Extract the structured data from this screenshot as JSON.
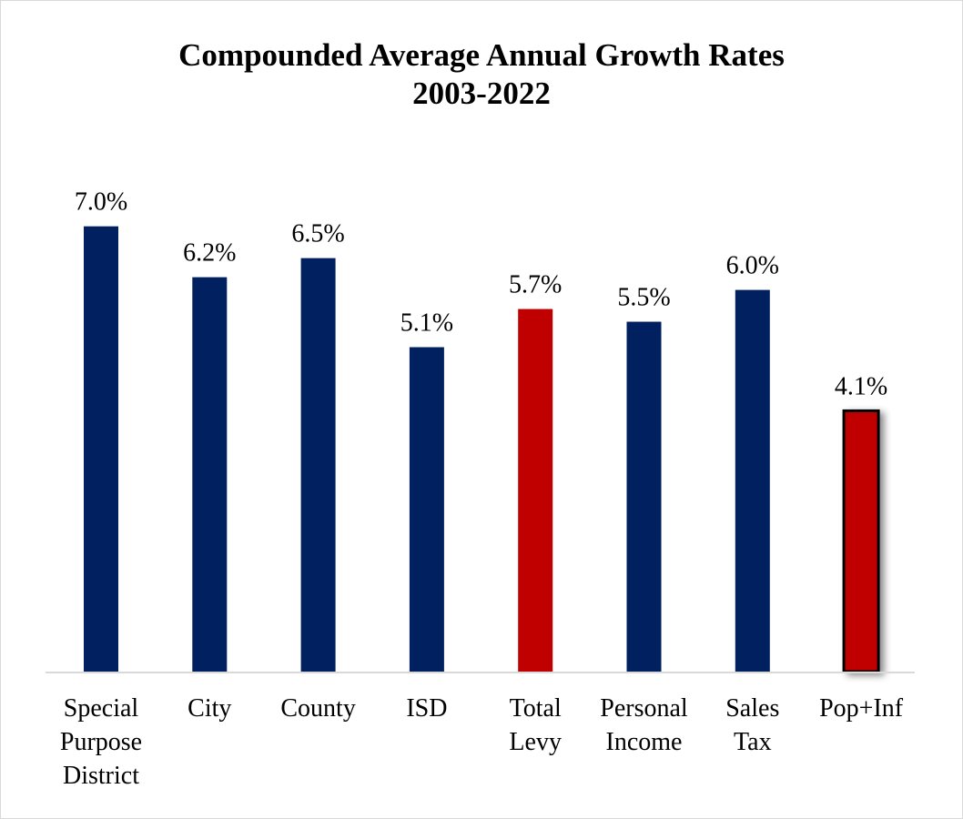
{
  "chart_data": {
    "type": "bar",
    "title": "Compounded Average Annual Growth Rates",
    "subtitle": "2003-2022",
    "categories": [
      [
        "Special",
        "Purpose",
        "District"
      ],
      [
        "City"
      ],
      [
        "County"
      ],
      [
        "ISD"
      ],
      [
        "Total",
        "Levy"
      ],
      [
        "Personal",
        "Income"
      ],
      [
        "Sales",
        "Tax"
      ],
      [
        "Pop+Inf"
      ]
    ],
    "values": [
      7.0,
      6.2,
      6.5,
      5.1,
      5.7,
      5.5,
      6.0,
      4.1
    ],
    "data_labels": [
      "7.0%",
      "6.2%",
      "6.5%",
      "5.1%",
      "5.7%",
      "5.5%",
      "6.0%",
      "4.1%"
    ],
    "bar_colors": [
      "#002060",
      "#002060",
      "#002060",
      "#002060",
      "#c00000",
      "#002060",
      "#002060",
      "#c00000"
    ],
    "highlighted_bar_outline": [
      false,
      false,
      false,
      false,
      false,
      false,
      false,
      true
    ],
    "unit": "%",
    "ylim": [
      0,
      7.0
    ],
    "grid": false,
    "legend": "none",
    "xlabel": "",
    "ylabel": ""
  }
}
